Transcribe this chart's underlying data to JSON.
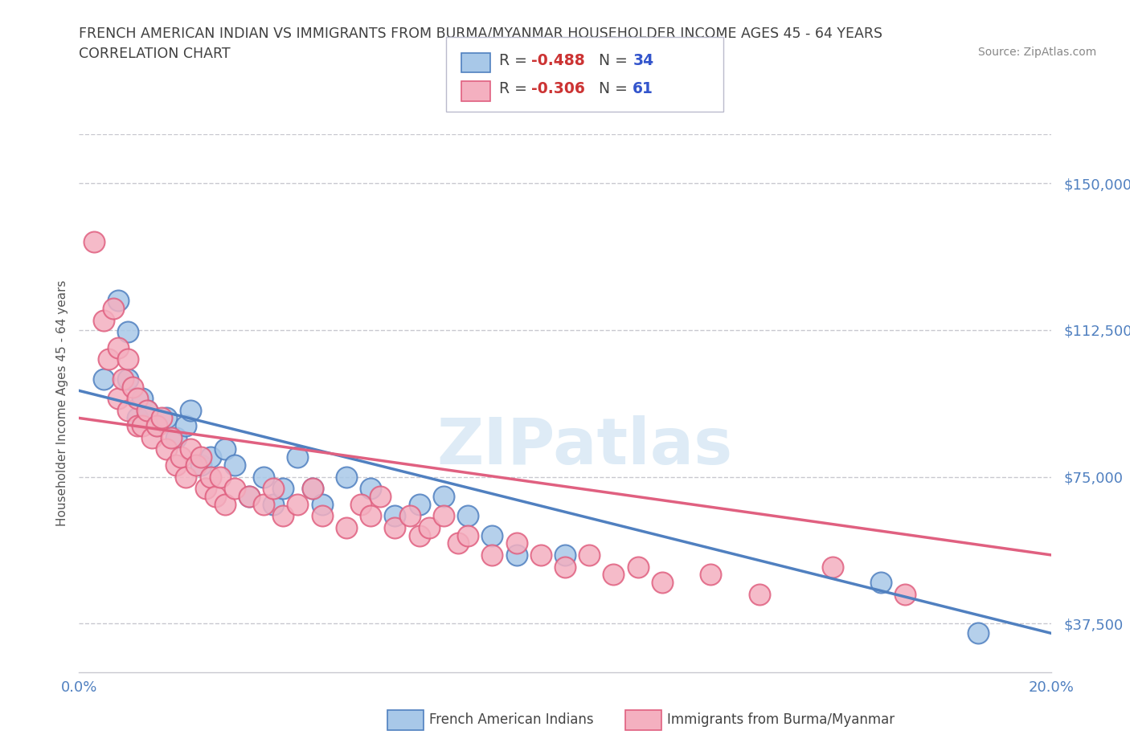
{
  "title_line1": "FRENCH AMERICAN INDIAN VS IMMIGRANTS FROM BURMA/MYANMAR HOUSEHOLDER INCOME AGES 45 - 64 YEARS",
  "title_line2": "CORRELATION CHART",
  "source_text": "Source: ZipAtlas.com",
  "ylabel": "Householder Income Ages 45 - 64 years",
  "xlim": [
    0.0,
    0.2
  ],
  "ylim": [
    25000,
    162500
  ],
  "yticks": [
    37500,
    75000,
    112500,
    150000
  ],
  "ytick_labels": [
    "$37,500",
    "$75,000",
    "$112,500",
    "$150,000"
  ],
  "xticks": [
    0.0,
    0.025,
    0.05,
    0.075,
    0.1,
    0.125,
    0.15,
    0.175,
    0.2
  ],
  "xtick_labels": [
    "0.0%",
    "",
    "",
    "",
    "",
    "",
    "",
    "",
    "20.0%"
  ],
  "blue_R": -0.488,
  "blue_N": 34,
  "pink_R": -0.306,
  "pink_N": 61,
  "blue_color": "#a8c8e8",
  "pink_color": "#f4b0c0",
  "blue_line_color": "#5080c0",
  "pink_line_color": "#e06080",
  "blue_label": "French American Indians",
  "pink_label": "Immigrants from Burma/Myanmar",
  "watermark": "ZIPatlas",
  "background_color": "#ffffff",
  "blue_scatter_x": [
    0.005,
    0.008,
    0.01,
    0.01,
    0.012,
    0.013,
    0.014,
    0.016,
    0.018,
    0.02,
    0.022,
    0.023,
    0.025,
    0.027,
    0.03,
    0.032,
    0.035,
    0.038,
    0.04,
    0.042,
    0.045,
    0.048,
    0.05,
    0.055,
    0.06,
    0.065,
    0.07,
    0.075,
    0.08,
    0.085,
    0.09,
    0.1,
    0.165,
    0.185
  ],
  "blue_scatter_y": [
    100000,
    120000,
    100000,
    112000,
    90000,
    95000,
    92000,
    88000,
    90000,
    85000,
    88000,
    92000,
    78000,
    80000,
    82000,
    78000,
    70000,
    75000,
    68000,
    72000,
    80000,
    72000,
    68000,
    75000,
    72000,
    65000,
    68000,
    70000,
    65000,
    60000,
    55000,
    55000,
    48000,
    35000
  ],
  "pink_scatter_x": [
    0.003,
    0.005,
    0.006,
    0.007,
    0.008,
    0.008,
    0.009,
    0.01,
    0.01,
    0.011,
    0.012,
    0.012,
    0.013,
    0.014,
    0.015,
    0.016,
    0.017,
    0.018,
    0.019,
    0.02,
    0.021,
    0.022,
    0.023,
    0.024,
    0.025,
    0.026,
    0.027,
    0.028,
    0.029,
    0.03,
    0.032,
    0.035,
    0.038,
    0.04,
    0.042,
    0.045,
    0.048,
    0.05,
    0.055,
    0.058,
    0.06,
    0.062,
    0.065,
    0.068,
    0.07,
    0.072,
    0.075,
    0.078,
    0.08,
    0.085,
    0.09,
    0.095,
    0.1,
    0.105,
    0.11,
    0.115,
    0.12,
    0.13,
    0.14,
    0.155,
    0.17
  ],
  "pink_scatter_y": [
    135000,
    115000,
    105000,
    118000,
    108000,
    95000,
    100000,
    92000,
    105000,
    98000,
    88000,
    95000,
    88000,
    92000,
    85000,
    88000,
    90000,
    82000,
    85000,
    78000,
    80000,
    75000,
    82000,
    78000,
    80000,
    72000,
    75000,
    70000,
    75000,
    68000,
    72000,
    70000,
    68000,
    72000,
    65000,
    68000,
    72000,
    65000,
    62000,
    68000,
    65000,
    70000,
    62000,
    65000,
    60000,
    62000,
    65000,
    58000,
    60000,
    55000,
    58000,
    55000,
    52000,
    55000,
    50000,
    52000,
    48000,
    50000,
    45000,
    52000,
    45000
  ]
}
